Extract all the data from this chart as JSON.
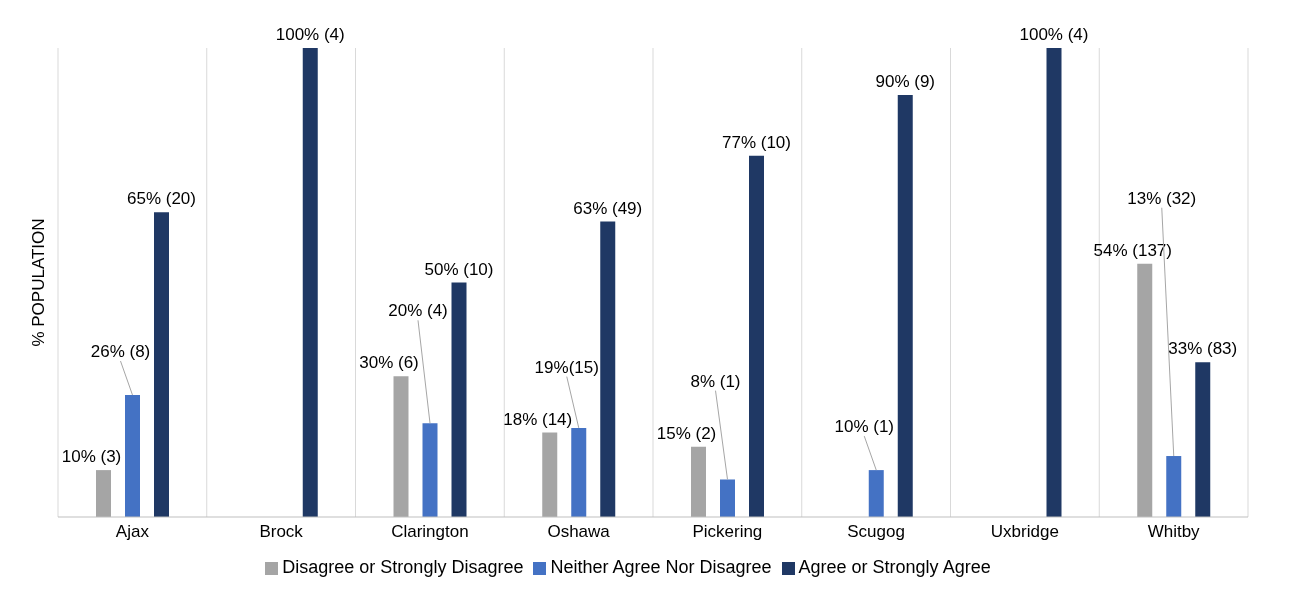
{
  "chart_data": {
    "type": "bar",
    "ylabel": "% POPULATION",
    "categories": [
      "Ajax",
      "Brock",
      "Clarington",
      "Oshawa",
      "Pickering",
      "Scugog",
      "Uxbridge",
      "Whitby"
    ],
    "series": [
      {
        "name": "Disagree or Strongly Disagree",
        "color": "#a5a5a5",
        "values": [
          10,
          null,
          30,
          18,
          15,
          null,
          null,
          54
        ],
        "value_labels": [
          "10% (3)",
          null,
          "30% (6)",
          "18% (14)",
          "15% (2)",
          null,
          null,
          "54% (137)"
        ]
      },
      {
        "name": "Neither Agree Nor Disagree",
        "color": "#4472c4",
        "values": [
          26,
          null,
          20,
          19,
          8,
          10,
          null,
          13
        ],
        "value_labels": [
          "26% (8)",
          null,
          "20% (4)",
          "19%(15)",
          "8% (1)",
          "10% (1)",
          null,
          "13% (32)"
        ]
      },
      {
        "name": "Agree or Strongly Agree",
        "color": "#1f3864",
        "values": [
          65,
          100,
          50,
          63,
          77,
          90,
          100,
          33
        ],
        "value_labels": [
          "65% (20)",
          "100% (4)",
          "50% (10)",
          "63% (49)",
          "77% (10)",
          "90% (9)",
          "100% (4)",
          "33% (83)"
        ]
      }
    ],
    "ylim": [
      0,
      100
    ],
    "grid": "x",
    "legend": "bottom"
  }
}
